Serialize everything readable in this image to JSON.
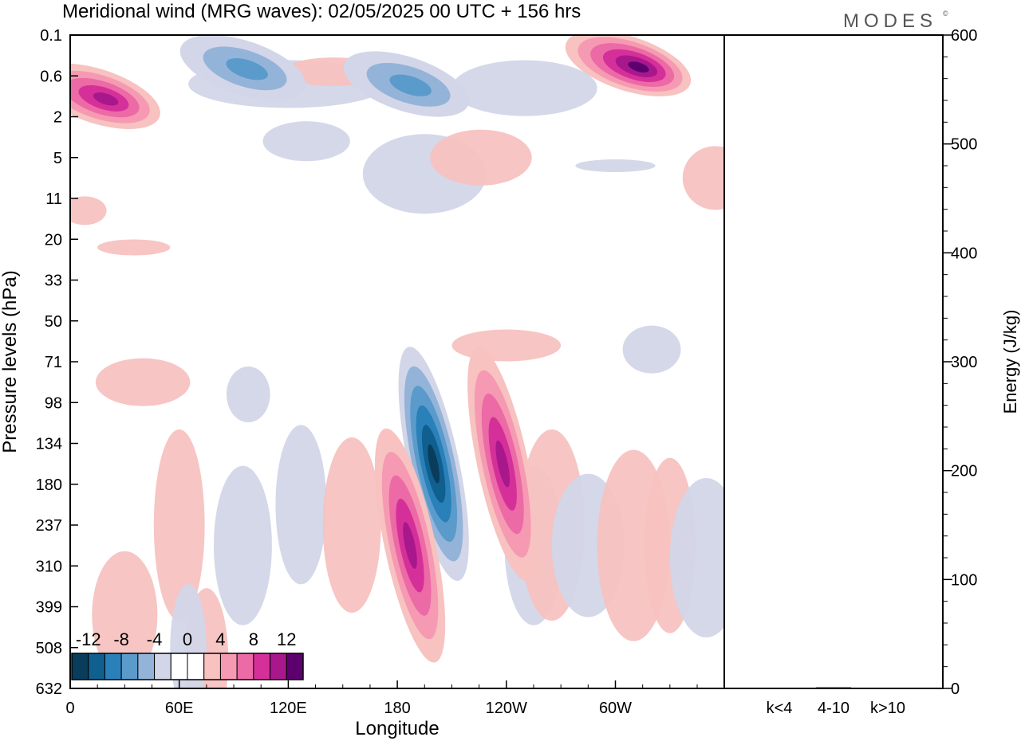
{
  "title": "Meridional wind (MRG waves):  02/05/2025  00 UTC  + 156 hrs",
  "brand": "MODES",
  "brand_mark": "©",
  "chart_data": [
    {
      "type": "heatmap",
      "xlabel": "Longitude",
      "ylabel": "Pressure levels (hPa)",
      "x_ticks": [
        "0",
        "60E",
        "120E",
        "180",
        "120W",
        "60W"
      ],
      "y_ticks": [
        "0.1",
        "0.6",
        "2",
        "5",
        "11",
        "20",
        "33",
        "50",
        "71",
        "98",
        "134",
        "180",
        "237",
        "310",
        "399",
        "508",
        "632"
      ],
      "xlim": [
        0,
        360
      ],
      "colorbar": {
        "labels": [
          "-12",
          "-8",
          "-4",
          "0",
          "4",
          "8",
          "12"
        ],
        "colors": [
          "#0a3d5c",
          "#0f5f8f",
          "#2a80b9",
          "#5b9bcb",
          "#93b4d8",
          "#d2d6e8",
          "#ffffff",
          "#ffffff",
          "#f7c2c0",
          "#f59ab2",
          "#ec6aa5",
          "#d5309a",
          "#a8188c",
          "#5c0070"
        ]
      },
      "features": [
        {
          "sign": "neg",
          "lon": 200,
          "level_index": 10.5,
          "peak": -13
        },
        {
          "sign": "pos",
          "lon": 187,
          "level_index": 12.5,
          "peak": 10
        },
        {
          "sign": "pos",
          "lon": 238,
          "level_index": 10.5,
          "peak": 9
        },
        {
          "sign": "pos",
          "lon": 15,
          "level_index": 1.5,
          "peak": 10
        },
        {
          "sign": "pos",
          "lon": 307,
          "level_index": 0.7,
          "peak": 11
        },
        {
          "sign": "neg",
          "lon": 95,
          "level_index": 0.8,
          "peak": -6
        },
        {
          "sign": "neg",
          "lon": 185,
          "level_index": 1.2,
          "peak": -6
        }
      ]
    },
    {
      "type": "bar",
      "categories": [
        "k<4",
        "4-10",
        "k>10"
      ],
      "values": [
        0.5,
        1,
        0
      ],
      "ylabel": "Energy (J/kg)",
      "ylim": [
        0,
        600
      ],
      "y_ticks": [
        "0",
        "100",
        "200",
        "300",
        "400",
        "500",
        "600"
      ]
    }
  ]
}
